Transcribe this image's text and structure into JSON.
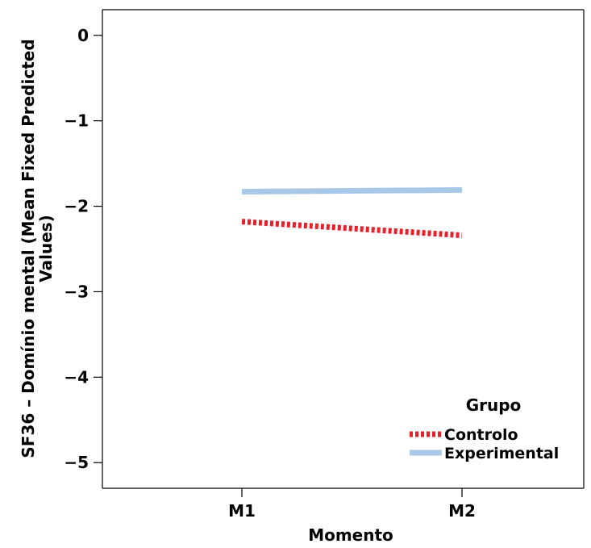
{
  "chart_data": {
    "type": "line",
    "categories": [
      "M1",
      "M2"
    ],
    "series": [
      {
        "name": "Controlo",
        "values": [
          -2.18,
          -2.34
        ],
        "color": "#e8202a",
        "dash": "dotted"
      },
      {
        "name": "Experimental",
        "values": [
          -1.83,
          -1.81
        ],
        "color": "#a9c8e8",
        "dash": "solid"
      }
    ],
    "xlabel": "Momento",
    "ylabel": "SF36 – Domínio mental (Mean Fixed Predicted Values)",
    "ylabel_lines": [
      "SF36 – Domínio mental (Mean Fixed Predicted",
      "Values)"
    ],
    "ylim": [
      -5.3,
      0.3
    ],
    "yticks": [
      0,
      -1,
      -2,
      -3,
      -4,
      -5
    ],
    "ytick_labels": [
      "0",
      "−1",
      "−2",
      "−3",
      "−4",
      "−5"
    ],
    "legend_title": "Grupo",
    "legend_position": "bottom-right",
    "grid": false
  }
}
